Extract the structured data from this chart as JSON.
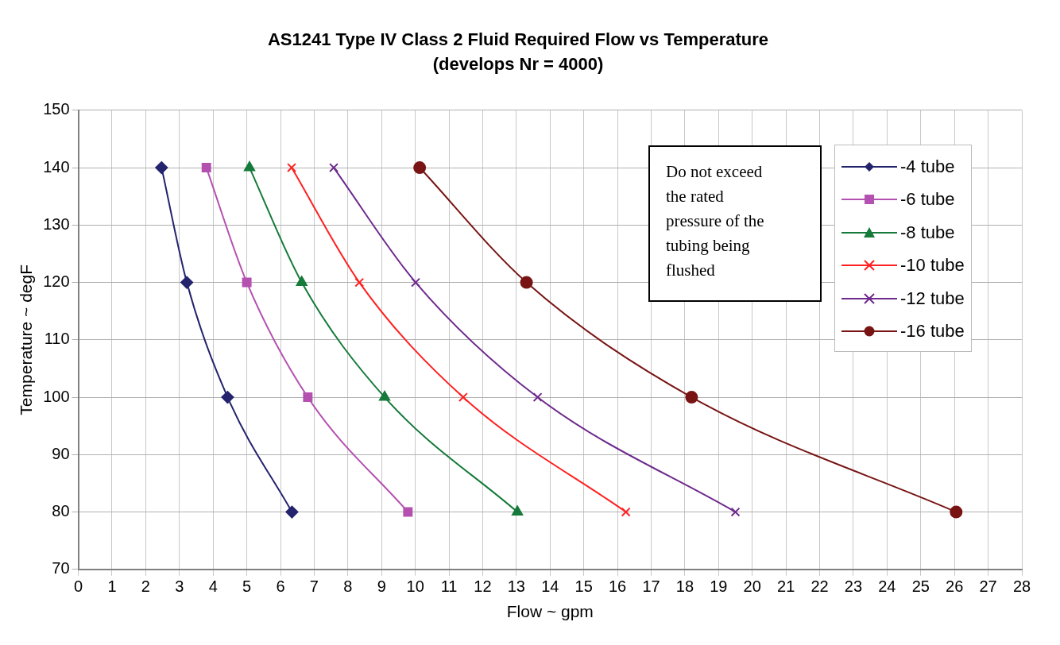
{
  "chart_data": {
    "type": "line",
    "title": "AS1241 Type IV Class 2 Fluid Required Flow vs Temperature",
    "subtitle": "(develops Nr = 4000)",
    "xlabel": "Flow ~ gpm",
    "ylabel": "Temperature ~ degF",
    "xlim": [
      0,
      28
    ],
    "xticks": [
      0,
      1,
      2,
      3,
      4,
      5,
      6,
      7,
      8,
      9,
      10,
      11,
      12,
      13,
      14,
      15,
      16,
      17,
      18,
      19,
      20,
      21,
      22,
      23,
      24,
      25,
      26,
      27,
      28
    ],
    "ylim": [
      70,
      150
    ],
    "yticks": [
      70,
      80,
      90,
      100,
      110,
      120,
      130,
      140,
      150
    ],
    "grid": true,
    "legend": "top right",
    "annotations": [
      "Do not exceed the rated pressure of the tubing being flushed"
    ],
    "series": [
      {
        "name": "-4 tube",
        "color": "#24246e",
        "marker": "diamond",
        "x": [
          2.47,
          3.22,
          4.43,
          6.34
        ],
        "values": [
          140,
          120,
          100,
          80
        ]
      },
      {
        "name": "-6 tube",
        "color": "#b450b0",
        "marker": "square",
        "x": [
          3.8,
          5.0,
          6.81,
          9.78
        ],
        "values": [
          140,
          120,
          100,
          80
        ]
      },
      {
        "name": "-8 tube",
        "color": "#167a3a",
        "marker": "triangle",
        "x": [
          5.08,
          6.63,
          9.09,
          13.03
        ],
        "values": [
          140,
          120,
          100,
          80
        ]
      },
      {
        "name": "-10 tube",
        "color": "#ff2020",
        "marker": "cross",
        "x": [
          6.33,
          8.34,
          11.42,
          16.25
        ],
        "values": [
          140,
          120,
          100,
          80
        ]
      },
      {
        "name": "-12 tube",
        "color": "#6e2a8c",
        "marker": "cross",
        "x": [
          7.58,
          10.01,
          13.63,
          19.5
        ],
        "values": [
          140,
          120,
          100,
          80
        ]
      },
      {
        "name": "-16 tube",
        "color": "#781414",
        "marker": "circle",
        "x": [
          10.13,
          13.3,
          18.2,
          26.05
        ],
        "values": [
          140,
          120,
          100,
          80
        ]
      }
    ]
  }
}
